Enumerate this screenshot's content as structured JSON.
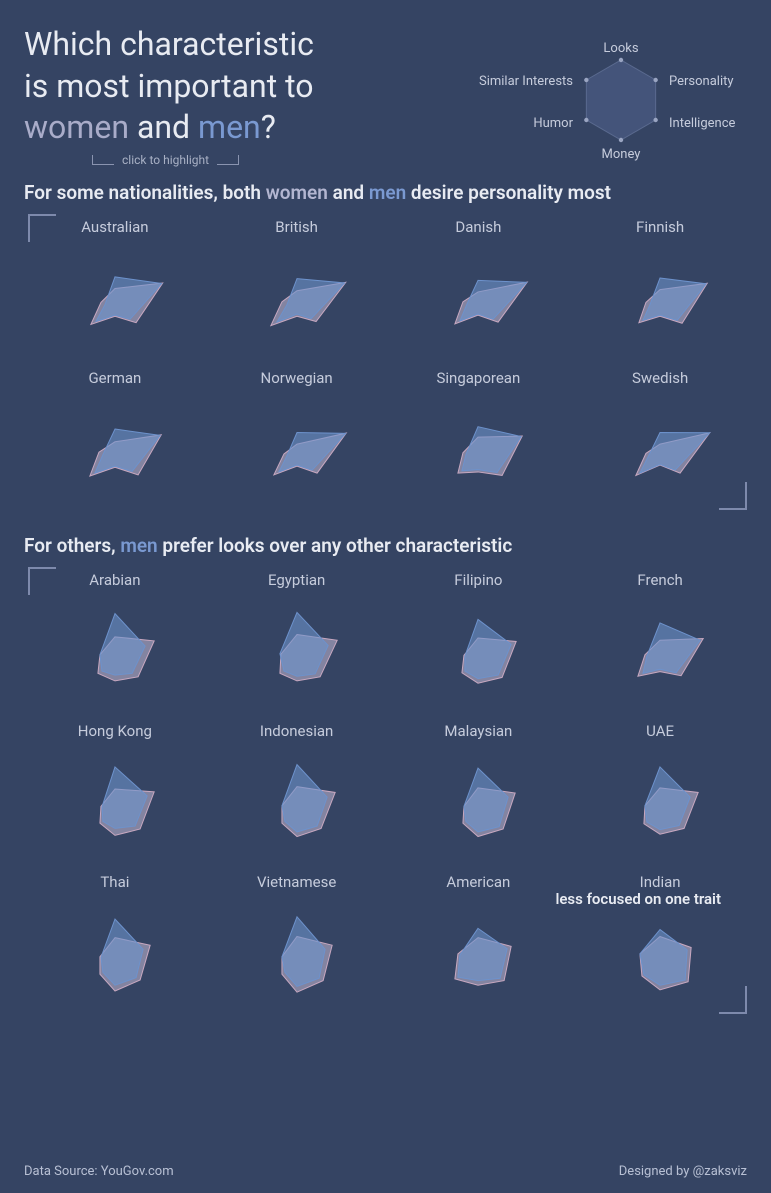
{
  "colors": {
    "background": "#354463",
    "text": "#d0d5e0",
    "title": "#e8ebf2",
    "women": "#b3accb",
    "women_fill": "rgba(195,186,214,0.55)",
    "women_stroke": "#c8a8c0",
    "men": "#7a99d1",
    "men_fill": "rgba(109,146,204,0.60)",
    "men_stroke": "#6d92cc",
    "hex_stroke": "#5a6a8f",
    "hex_fill": "#44547a",
    "bracket": "#8a94b0"
  },
  "typography": {
    "title_fontsize": 32,
    "section_title_fontsize": 19,
    "cell_label_fontsize": 15,
    "legend_label_fontsize": 13,
    "footer_fontsize": 13,
    "hint_fontsize": 12
  },
  "title_parts": {
    "l1": "Which  characteristic",
    "l2": "is most important to",
    "women": "women",
    "and": " and ",
    "men": "men",
    "q": "?"
  },
  "hint": "click to highlight",
  "axes": [
    "Looks",
    "Personality",
    "Intelligence",
    "Money",
    "Humor",
    "Similar Interests"
  ],
  "legend_hex_radius": 40,
  "section1": {
    "title_pre": "For some nationalities, both ",
    "women": "women",
    "mid": " and ",
    "men": "men",
    "title_post": " desire personality most"
  },
  "section2": {
    "title_pre": "For others, ",
    "men": "men",
    "title_post": " prefer looks over any other characteristic"
  },
  "subnote": "less focused on one trait",
  "group1": [
    {
      "name": "Australian",
      "women": [
        0.38,
        0.95,
        0.42,
        0.1,
        0.48,
        0.28
      ],
      "men": [
        0.58,
        0.93,
        0.3,
        0.08,
        0.38,
        0.2
      ]
    },
    {
      "name": "British",
      "women": [
        0.34,
        0.97,
        0.38,
        0.1,
        0.52,
        0.3
      ],
      "men": [
        0.55,
        0.95,
        0.28,
        0.06,
        0.4,
        0.2
      ]
    },
    {
      "name": "Danish",
      "women": [
        0.32,
        0.98,
        0.4,
        0.08,
        0.46,
        0.3
      ],
      "men": [
        0.52,
        0.97,
        0.3,
        0.06,
        0.36,
        0.22
      ]
    },
    {
      "name": "Finnish",
      "women": [
        0.36,
        0.94,
        0.44,
        0.1,
        0.42,
        0.28
      ],
      "men": [
        0.56,
        0.92,
        0.34,
        0.08,
        0.34,
        0.2
      ]
    },
    {
      "name": "German",
      "women": [
        0.34,
        0.92,
        0.46,
        0.1,
        0.5,
        0.32
      ],
      "men": [
        0.56,
        0.9,
        0.34,
        0.08,
        0.4,
        0.24
      ]
    },
    {
      "name": "Norwegian",
      "women": [
        0.3,
        0.98,
        0.4,
        0.08,
        0.46,
        0.26
      ],
      "men": [
        0.5,
        0.97,
        0.3,
        0.06,
        0.36,
        0.2
      ]
    },
    {
      "name": "Singaporean",
      "women": [
        0.42,
        0.88,
        0.48,
        0.18,
        0.4,
        0.3
      ],
      "men": [
        0.6,
        0.86,
        0.38,
        0.14,
        0.32,
        0.24
      ]
    },
    {
      "name": "Swedish",
      "women": [
        0.3,
        0.99,
        0.4,
        0.06,
        0.48,
        0.28
      ],
      "men": [
        0.5,
        0.99,
        0.3,
        0.05,
        0.4,
        0.22
      ]
    }
  ],
  "group2": [
    {
      "name": "Arabian",
      "women": [
        0.46,
        0.78,
        0.46,
        0.3,
        0.34,
        0.3
      ],
      "men": [
        0.86,
        0.6,
        0.34,
        0.2,
        0.26,
        0.3
      ]
    },
    {
      "name": "Egyptian",
      "women": [
        0.5,
        0.8,
        0.46,
        0.3,
        0.34,
        0.32
      ],
      "men": [
        0.88,
        0.62,
        0.36,
        0.22,
        0.26,
        0.34
      ]
    },
    {
      "name": "Filipino",
      "women": [
        0.44,
        0.76,
        0.48,
        0.34,
        0.32,
        0.28
      ],
      "men": [
        0.76,
        0.66,
        0.4,
        0.26,
        0.26,
        0.26
      ]
    },
    {
      "name": "French",
      "women": [
        0.4,
        0.86,
        0.42,
        0.14,
        0.44,
        0.3
      ],
      "men": [
        0.7,
        0.8,
        0.32,
        0.1,
        0.34,
        0.26
      ]
    },
    {
      "name": "Hong Kong",
      "women": [
        0.44,
        0.78,
        0.5,
        0.36,
        0.3,
        0.28
      ],
      "men": [
        0.82,
        0.64,
        0.4,
        0.24,
        0.24,
        0.26
      ]
    },
    {
      "name": "Indonesian",
      "women": [
        0.48,
        0.76,
        0.48,
        0.38,
        0.3,
        0.3
      ],
      "men": [
        0.86,
        0.6,
        0.4,
        0.3,
        0.24,
        0.3
      ]
    },
    {
      "name": "Malaysian",
      "women": [
        0.46,
        0.74,
        0.5,
        0.38,
        0.3,
        0.28
      ],
      "men": [
        0.8,
        0.6,
        0.42,
        0.3,
        0.24,
        0.28
      ]
    },
    {
      "name": "UAE",
      "women": [
        0.46,
        0.76,
        0.48,
        0.34,
        0.32,
        0.3
      ],
      "men": [
        0.82,
        0.6,
        0.38,
        0.26,
        0.26,
        0.3
      ]
    },
    {
      "name": "Thai",
      "women": [
        0.48,
        0.7,
        0.5,
        0.44,
        0.3,
        0.3
      ],
      "men": [
        0.8,
        0.56,
        0.42,
        0.34,
        0.24,
        0.28
      ]
    },
    {
      "name": "Vietnamese",
      "women": [
        0.5,
        0.7,
        0.52,
        0.46,
        0.3,
        0.3
      ],
      "men": [
        0.84,
        0.56,
        0.44,
        0.36,
        0.24,
        0.3
      ]
    },
    {
      "name": "American",
      "women": [
        0.48,
        0.66,
        0.52,
        0.34,
        0.46,
        0.4
      ],
      "men": [
        0.64,
        0.58,
        0.44,
        0.26,
        0.4,
        0.36
      ]
    },
    {
      "name": "Indian",
      "women": [
        0.5,
        0.62,
        0.56,
        0.42,
        0.36,
        0.4
      ],
      "men": [
        0.62,
        0.54,
        0.5,
        0.34,
        0.32,
        0.4
      ]
    }
  ],
  "footer": {
    "source": "Data Source: YouGov.com",
    "credit": "Designed by @zaksviz"
  }
}
